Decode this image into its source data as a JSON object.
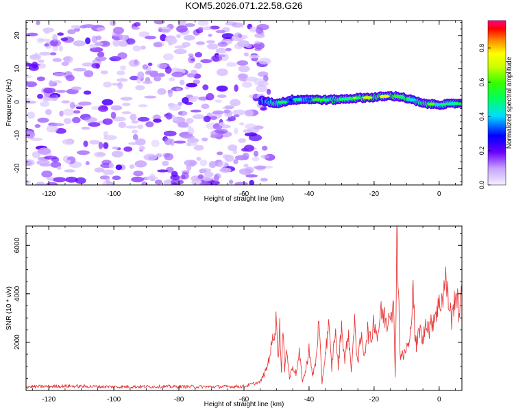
{
  "title": "KOM5.2026.071.22.58.G26",
  "chart_data": [
    {
      "type": "heatmap",
      "xlabel": "Height of straight line (km)",
      "ylabel": "Frequency (Hz)",
      "xlim": [
        -127,
        7
      ],
      "ylim": [
        -25,
        24.5
      ],
      "xticks": [
        -120,
        -100,
        -80,
        -60,
        -40,
        -20,
        0
      ],
      "yticks": [
        -20,
        -10,
        0,
        10,
        20
      ],
      "noise_region_x": [
        -127,
        -52
      ],
      "signal_band": {
        "x": [
          -55,
          -50,
          -45,
          -40,
          -35,
          -30,
          -25,
          -20,
          -15,
          -12,
          -8,
          -5,
          0,
          5,
          7
        ],
        "freq": [
          0.5,
          -0.5,
          0.7,
          0.8,
          0.6,
          0.8,
          1.2,
          1.4,
          1.8,
          1.6,
          0.5,
          -0.5,
          -0.8,
          -0.5,
          -0.3
        ],
        "amplitude": [
          0.35,
          0.55,
          0.45,
          0.55,
          0.6,
          0.65,
          0.7,
          0.8,
          0.75,
          0.85,
          0.55,
          0.7,
          0.6,
          0.55,
          0.5
        ]
      },
      "colorbar": {
        "label": "Normalized spectral amplitude",
        "ticks": [
          0.0,
          0.2,
          0.4,
          0.6,
          0.8
        ],
        "range": [
          0,
          0.96
        ],
        "colormap": "rainbow"
      },
      "grid": false
    },
    {
      "type": "line",
      "xlabel": "Height of straight line (km)",
      "ylabel": "SNR (10 * v/v)",
      "xlim": [
        -127,
        7
      ],
      "ylim": [
        0,
        6800
      ],
      "xticks": [
        -120,
        -100,
        -80,
        -60,
        -40,
        -20,
        0
      ],
      "yticks": [
        2000,
        4000,
        6000
      ],
      "series": [
        {
          "color": "#e83a3a",
          "x": [
            -127,
            -115,
            -100,
            -85,
            -70,
            -60,
            -55,
            -53,
            -51,
            -50,
            -49.5,
            -49,
            -48.5,
            -48,
            -47.5,
            -47,
            -46,
            -45,
            -44,
            -43,
            -42,
            -41,
            -40,
            -39,
            -38,
            -37,
            -36,
            -35,
            -34,
            -33,
            -32,
            -31,
            -30,
            -29,
            -28,
            -27,
            -26,
            -25,
            -24,
            -23,
            -22,
            -21,
            -20,
            -19,
            -18,
            -17,
            -16,
            -15,
            -14,
            -13.5,
            -13,
            -12.5,
            -12,
            -11,
            -10,
            -9,
            -8,
            -7.5,
            -7,
            -6,
            -5,
            -4,
            -3,
            -2,
            -1,
            0,
            1,
            2,
            3,
            4,
            5,
            6,
            7
          ],
          "y": [
            150,
            180,
            150,
            160,
            150,
            170,
            350,
            900,
            2200,
            3000,
            1200,
            2800,
            700,
            2500,
            900,
            1900,
            500,
            1000,
            700,
            1500,
            400,
            800,
            1800,
            600,
            1100,
            2800,
            300,
            1500,
            2700,
            900,
            2500,
            1000,
            2700,
            1200,
            2400,
            900,
            2700,
            1200,
            2200,
            1500,
            2500,
            2000,
            3000,
            2200,
            3200,
            3100,
            2800,
            3500,
            3300,
            600,
            6800,
            4200,
            1500,
            1400,
            1800,
            1900,
            4700,
            2300,
            1800,
            2600,
            2000,
            3000,
            2500,
            2900,
            3300,
            3500,
            3900,
            4600,
            3600,
            2900,
            4200,
            3300,
            3900
          ]
        }
      ],
      "grid": false
    }
  ]
}
